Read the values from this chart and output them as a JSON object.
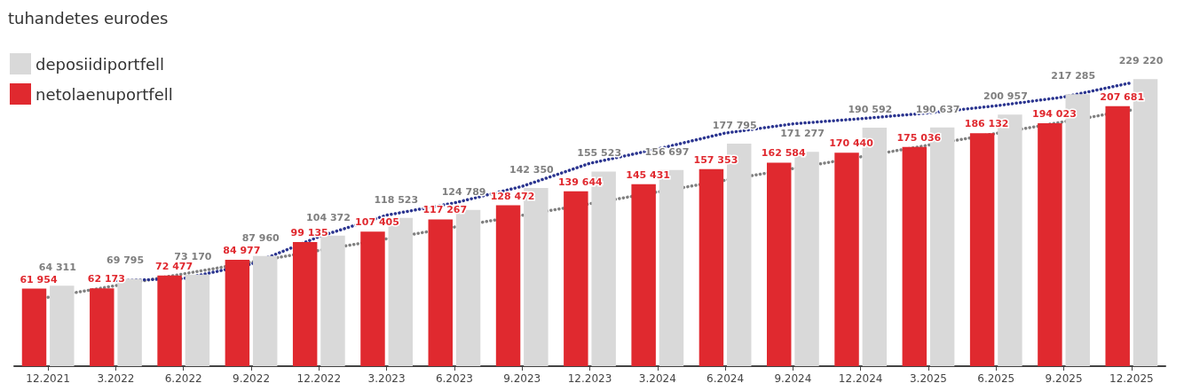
{
  "chart_data": {
    "type": "bar",
    "title": "tuhandetes eurodes",
    "categories": [
      "12.2021",
      "3.2022",
      "6.2022",
      "9.2022",
      "12.2022",
      "3.2023",
      "6.2023",
      "9.2023",
      "12.2023",
      "3.2024",
      "6.2024",
      "9.2024",
      "12.2024",
      "3.2025",
      "6.2025",
      "9.2025",
      "12.2025"
    ],
    "series": [
      {
        "name": "netolaenuportfell",
        "color": "#e0292f",
        "values": [
          61954,
          62173,
          72477,
          84977,
          99135,
          107405,
          117267,
          128472,
          139644,
          145431,
          157353,
          162584,
          170440,
          175036,
          186132,
          194023,
          207681
        ],
        "value_labels": [
          "61 954",
          "62 173",
          "72 477",
          "84 977",
          "99 135",
          "107 405",
          "117 267",
          "128 472",
          "139 644",
          "145 431",
          "157 353",
          "162 584",
          "170 440",
          "175 036",
          "186 132",
          "194 023",
          "207 681"
        ]
      },
      {
        "name": "deposiidiportfell",
        "color": "#d9d9d9",
        "values": [
          64311,
          69795,
          73170,
          87960,
          104372,
          118523,
          124789,
          142350,
          155523,
          156697,
          177795,
          171277,
          190592,
          190637,
          200957,
          217285,
          229220
        ],
        "value_labels": [
          "64 311",
          "69 795",
          "73 170",
          "87 960",
          "104 372",
          "118 523",
          "124 789",
          "142 350",
          "155 523",
          "156 697",
          "177 795",
          "171 277",
          "190 592",
          "190 637",
          "200 957",
          "217 285",
          "229 220"
        ]
      },
      {
        "type": "line",
        "color": "#808080",
        "line_style": "dotted",
        "marker": "none",
        "values": [
          55000,
          64350,
          73700,
          83050,
          92400,
          101750,
          111100,
          120450,
          129800,
          139150,
          148500,
          157850,
          167200,
          176550,
          185900,
          195250,
          204600
        ]
      },
      {
        "type": "line",
        "color": "#2b3590",
        "line_style": "dotted",
        "marker": "none",
        "values": [
          null,
          68300,
          70000,
          81500,
          103400,
          120600,
          130400,
          143600,
          162000,
          173500,
          186200,
          193600,
          197700,
          202300,
          208000,
          215000,
          226400
        ]
      }
    ],
    "grid": false,
    "legend": "top left"
  }
}
